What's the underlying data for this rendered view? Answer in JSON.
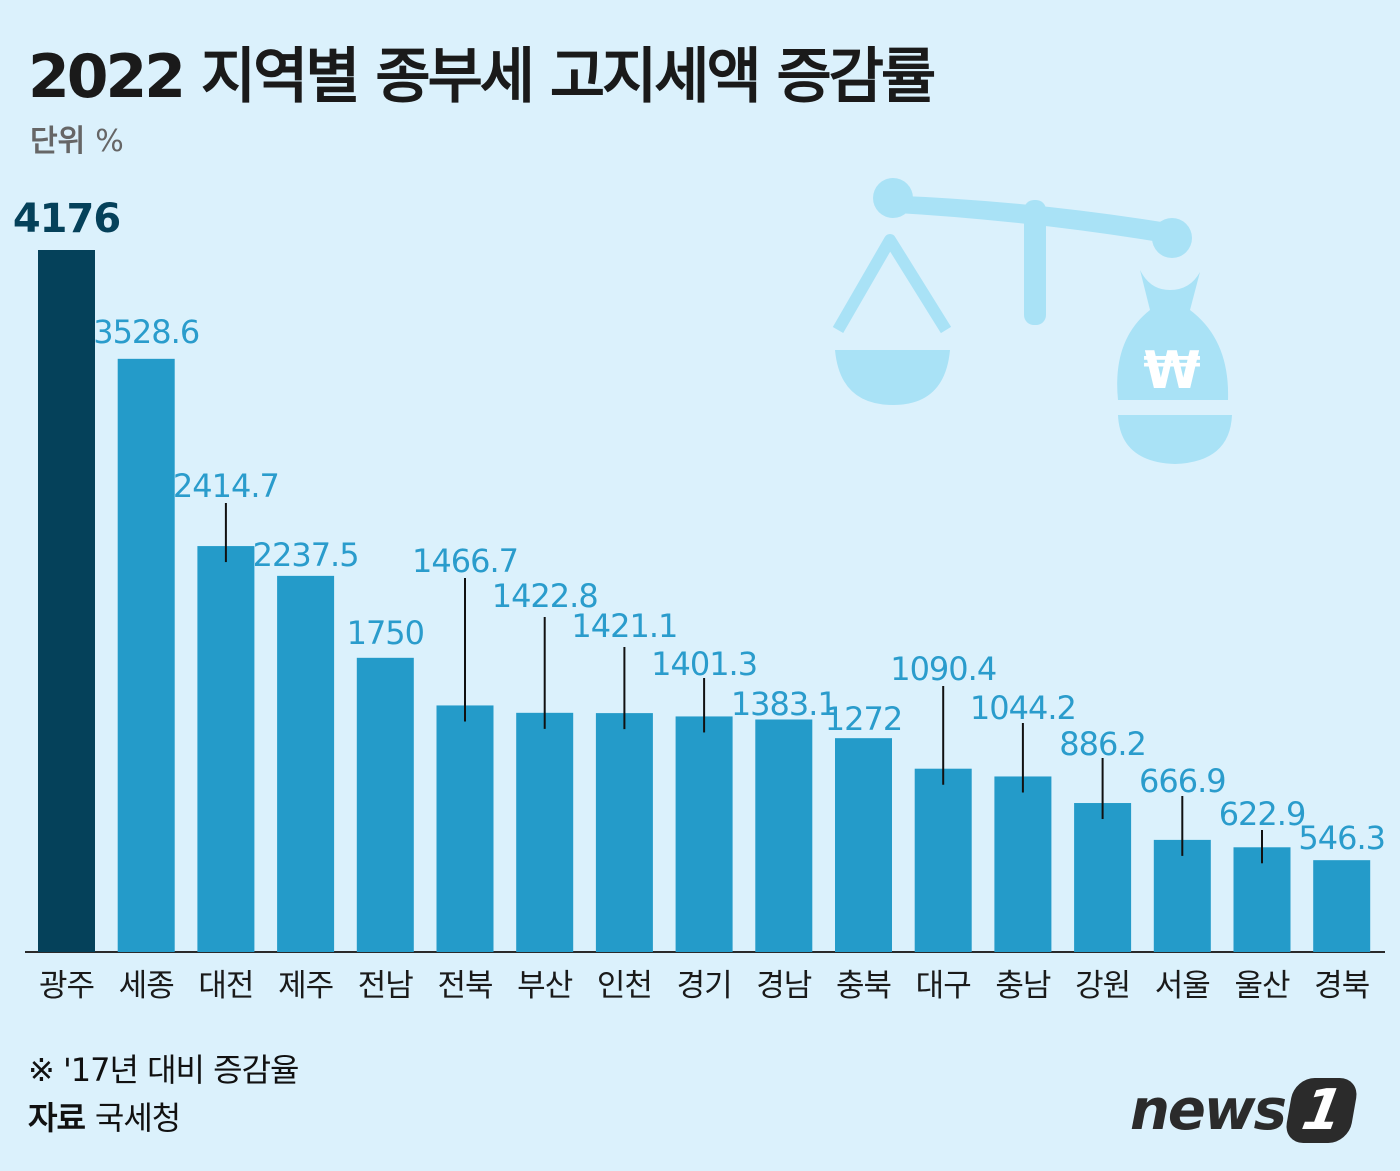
{
  "title": "2022 지역별 종부세 고지세액 증감률",
  "unit_label": "단위",
  "unit_value": "%",
  "note": "※ '17년 대비 증감율",
  "source_label": "자료",
  "source_value": "국세청",
  "logo": {
    "text": "news",
    "mark": "1"
  },
  "icon": "scale-with-money-bag-icon",
  "colors": {
    "background": "#dbf1fc",
    "bar": "#249bc9",
    "highlight_bar": "#05415a",
    "label": "#2a9ccc",
    "icon": "#a9e2f6"
  },
  "chart_data": {
    "type": "bar",
    "title": "2022 지역별 종부세 고지세액 증감률",
    "ylabel": "단위 %",
    "categories": [
      "광주",
      "세종",
      "대전",
      "제주",
      "전남",
      "전북",
      "부산",
      "인천",
      "경기",
      "경남",
      "충북",
      "대구",
      "충남",
      "강원",
      "서울",
      "울산",
      "경북"
    ],
    "values": [
      4176,
      3528.6,
      2414.7,
      2237.5,
      1750,
      1466.7,
      1422.8,
      1421.1,
      1401.3,
      1383.1,
      1272,
      1090.4,
      1044.2,
      886.2,
      666.9,
      622.9,
      546.3
    ],
    "value_labels": [
      "4176",
      "3528.6",
      "2414.7",
      "2237.5",
      "1750",
      "1466.7",
      "1422.8",
      "1421.1",
      "1401.3",
      "1383.1",
      "1272",
      "1090.4",
      "1044.2",
      "886.2",
      "666.9",
      "622.9",
      "546.3"
    ],
    "ylim": [
      0,
      4176
    ],
    "grid": false,
    "highlight_index": 0
  }
}
